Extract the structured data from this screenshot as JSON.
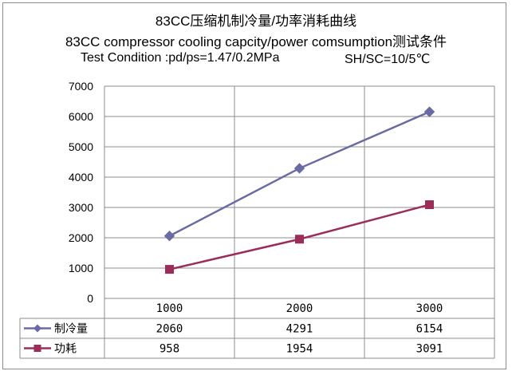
{
  "title": {
    "line1": "83CC压缩机制冷量/功率消耗曲线",
    "line2": "83CC compressor cooling capcity/power comsumption测试条件",
    "condition_left": "Test Condition :pd/ps=1.47/0.2MPa",
    "condition_right": "SH/SC=10/5℃"
  },
  "chart_data": {
    "type": "line",
    "title": "83CC压缩机制冷量/功率消耗曲线",
    "subtitle": "83CC compressor cooling capcity/power comsumption测试条件",
    "categories": [
      "1000",
      "2000",
      "3000"
    ],
    "series": [
      {
        "name": "制冷量",
        "values": [
          2060,
          4291,
          6154
        ],
        "color": "#6b6ba3",
        "marker": "diamond"
      },
      {
        "name": "功耗",
        "values": [
          958,
          1954,
          3091
        ],
        "color": "#9b2d5a",
        "marker": "square"
      }
    ],
    "ylim": [
      0,
      7000
    ],
    "yticks": [
      "0",
      "1000",
      "2000",
      "3000",
      "4000",
      "5000",
      "6000",
      "7000"
    ],
    "grid": true,
    "legend": "data-table"
  }
}
